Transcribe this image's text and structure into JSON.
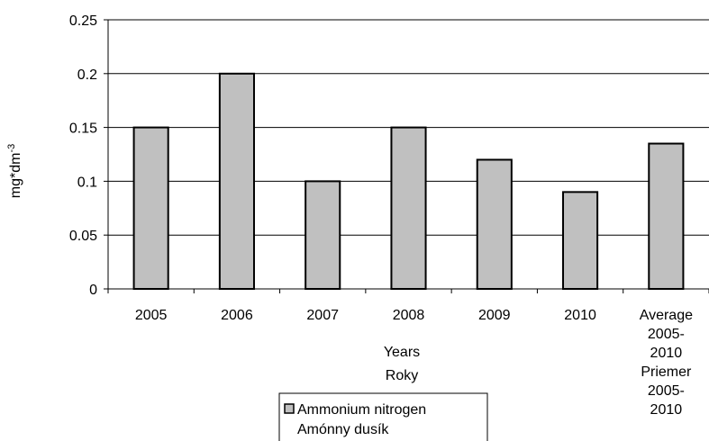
{
  "chart_data": {
    "type": "bar",
    "categories": [
      "2005",
      "2006",
      "2007",
      "2008",
      "2009",
      "2010",
      "Average 2005-2010 Priemer 2005-2010"
    ],
    "series": [
      {
        "name": "Ammonium nitrogen\nAmónny dusík",
        "color": "#c0c0c0",
        "values": [
          0.15,
          0.2,
          0.1,
          0.15,
          0.12,
          0.09,
          0.135
        ]
      }
    ],
    "x_label": "Years\nRoky",
    "y_label": "mg*dm-3",
    "ylim": [
      0,
      0.25
    ],
    "yticks": [
      0,
      0.05,
      0.1,
      0.15,
      0.2,
      0.25
    ],
    "grid": true,
    "legend": "bottom"
  }
}
